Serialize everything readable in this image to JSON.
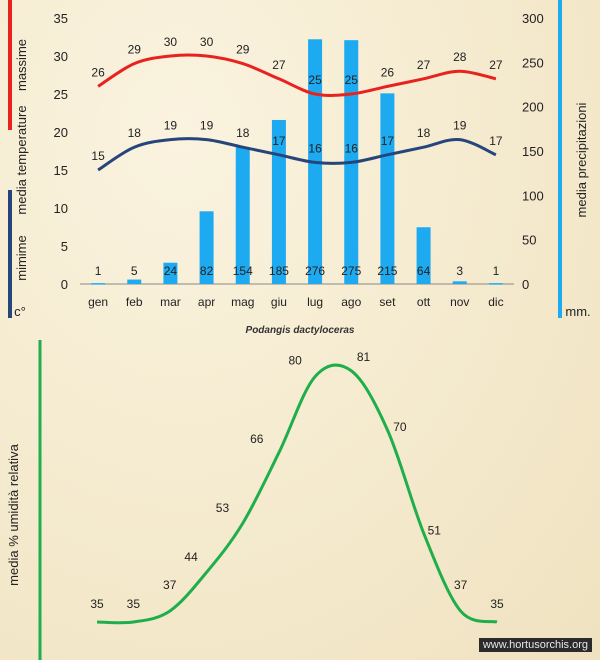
{
  "chart_data": [
    {
      "type": "bar+line",
      "categories": [
        "gen",
        "feb",
        "mar",
        "apr",
        "mag",
        "giu",
        "lug",
        "ago",
        "set",
        "ott",
        "nov",
        "dic"
      ],
      "series": [
        {
          "name": "media precipitazioni",
          "kind": "bar",
          "axis": "right",
          "color": "#1eaaf0",
          "values": [
            1,
            5,
            24,
            82,
            154,
            185,
            276,
            275,
            215,
            64,
            3,
            1
          ]
        },
        {
          "name": "massime",
          "kind": "line",
          "axis": "left",
          "color": "#e8231f",
          "values": [
            26,
            29,
            30,
            30,
            29,
            27,
            25,
            25,
            26,
            27,
            28,
            27
          ]
        },
        {
          "name": "mimime",
          "kind": "line",
          "axis": "left",
          "color": "#26457a",
          "values": [
            15,
            18,
            19,
            19,
            18,
            17,
            16,
            16,
            17,
            18,
            19,
            17
          ]
        }
      ],
      "left_axis": {
        "ylim": [
          0,
          35
        ],
        "ticks": [
          0,
          5,
          10,
          15,
          20,
          25,
          30,
          35
        ],
        "title_top": "massime",
        "title_mid": "media  temperature",
        "title_bottom": "mimime",
        "unit": "c°"
      },
      "right_axis": {
        "ylim": [
          0,
          300
        ],
        "ticks": [
          0,
          50,
          100,
          150,
          200,
          250,
          300
        ],
        "title": "media  precipitazioni",
        "unit": "mm."
      },
      "grid": false
    },
    {
      "type": "line",
      "series": [
        {
          "name": "media % umidità relativa",
          "color": "#1fae4b",
          "values": [
            35,
            35,
            37,
            44,
            53,
            66,
            80,
            81,
            70,
            51,
            37,
            35
          ]
        }
      ],
      "ylabel": "media %  umidità relativa"
    }
  ],
  "caption": "Podangis dactyloceras",
  "watermark": "www.hortusorchis.org",
  "colors": {
    "massime": "#e8231f",
    "mimime": "#1eaaf0",
    "minimum_bar": "#26457a",
    "precip_axis": "#1eaaf0",
    "humidity": "#1fae4b"
  }
}
